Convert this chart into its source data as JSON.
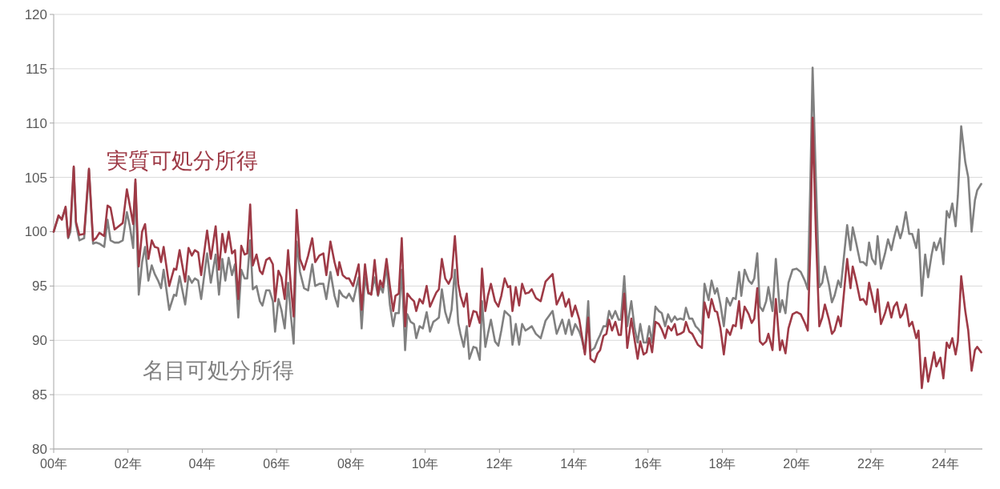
{
  "chart_data": {
    "type": "line",
    "x": [
      0,
      0.13,
      0.22,
      0.32,
      0.39,
      0.45,
      0.54,
      0.6,
      0.69,
      0.82,
      0.95,
      1.06,
      1.14,
      1.23,
      1.36,
      1.45,
      1.53,
      1.64,
      1.75,
      1.86,
      1.97,
      2.05,
      2.14,
      2.2,
      2.29,
      2.38,
      2.46,
      2.55,
      2.64,
      2.72,
      2.81,
      2.89,
      2.96,
      3.11,
      3.24,
      3.3,
      3.39,
      3.54,
      3.63,
      3.72,
      3.8,
      3.89,
      3.97,
      4.13,
      4.23,
      4.36,
      4.45,
      4.54,
      4.62,
      4.71,
      4.8,
      4.88,
      4.97,
      5.05,
      5.14,
      5.21,
      5.29,
      5.36,
      5.46,
      5.55,
      5.62,
      5.72,
      5.81,
      5.9,
      5.96,
      6.05,
      6.13,
      6.22,
      6.31,
      6.39,
      6.46,
      6.54,
      6.63,
      6.74,
      6.85,
      6.96,
      7.04,
      7.15,
      7.26,
      7.34,
      7.45,
      7.56,
      7.65,
      7.69,
      7.78,
      7.88,
      7.95,
      8.06,
      8.21,
      8.29,
      8.38,
      8.47,
      8.55,
      8.64,
      8.73,
      8.79,
      8.86,
      8.96,
      9.05,
      9.14,
      9.2,
      9.29,
      9.37,
      9.46,
      9.52,
      9.61,
      9.7,
      9.76,
      9.85,
      9.94,
      10.04,
      10.13,
      10.22,
      10.3,
      10.37,
      10.45,
      10.54,
      10.63,
      10.71,
      10.8,
      10.89,
      10.95,
      11.04,
      11.12,
      11.19,
      11.3,
      11.38,
      11.47,
      11.53,
      11.62,
      11.69,
      11.77,
      11.88,
      11.97,
      12.05,
      12.14,
      12.23,
      12.29,
      12.35,
      12.44,
      12.53,
      12.61,
      12.7,
      12.79,
      12.87,
      12.98,
      13.11,
      13.24,
      13.43,
      13.54,
      13.69,
      13.78,
      13.87,
      13.95,
      14.04,
      14.15,
      14.21,
      14.3,
      14.39,
      14.45,
      14.56,
      14.64,
      14.71,
      14.8,
      14.88,
      14.95,
      15.03,
      15.12,
      15.21,
      15.27,
      15.36,
      15.44,
      15.55,
      15.64,
      15.72,
      15.79,
      15.88,
      15.96,
      16.03,
      16.11,
      16.2,
      16.29,
      16.37,
      16.46,
      16.54,
      16.63,
      16.72,
      16.78,
      16.87,
      16.96,
      17.02,
      17.11,
      17.19,
      17.28,
      17.34,
      17.45,
      17.52,
      17.63,
      17.71,
      17.8,
      17.86,
      17.95,
      18.04,
      18.12,
      18.21,
      18.29,
      18.36,
      18.45,
      18.51,
      18.6,
      18.71,
      18.79,
      18.86,
      18.94,
      19.01,
      19.09,
      19.18,
      19.24,
      19.35,
      19.44,
      19.55,
      19.61,
      19.7,
      19.78,
      19.89,
      20,
      20.11,
      20.22,
      20.3,
      20.37,
      20.43,
      20.52,
      20.61,
      20.69,
      20.76,
      20.87,
      20.95,
      21.02,
      21.12,
      21.19,
      21.36,
      21.45,
      21.51,
      21.6,
      21.71,
      21.79,
      21.88,
      21.95,
      22.03,
      22.12,
      22.18,
      22.27,
      22.38,
      22.46,
      22.55,
      22.62,
      22.7,
      22.79,
      22.85,
      22.94,
      23.03,
      23.11,
      23.22,
      23.28,
      23.37,
      23.46,
      23.54,
      23.63,
      23.7,
      23.76,
      23.87,
      23.95,
      24.04,
      24.11,
      24.19,
      24.28,
      24.34,
      24.43,
      24.54,
      24.62,
      24.71,
      24.8,
      24.86,
      24.97
    ],
    "series": [
      {
        "name": "名目可処分所得",
        "color": "#808080",
        "values": [
          100,
          101.4,
          101.2,
          102.2,
          99.4,
          100,
          105.9,
          100.7,
          99.2,
          99.4,
          105.7,
          98.9,
          99,
          98.9,
          98.6,
          101.1,
          99.2,
          99,
          99,
          99.2,
          101.8,
          100.5,
          98.5,
          104.5,
          94.2,
          97.2,
          98.6,
          95.5,
          96.9,
          96.1,
          95.5,
          94.8,
          96.5,
          92.8,
          94.2,
          94.1,
          95.9,
          93.3,
          95.9,
          95.3,
          95.7,
          95.5,
          93.8,
          98,
          95.3,
          97.9,
          94.2,
          97.5,
          95.5,
          97.6,
          96,
          97,
          92.1,
          96.5,
          95.7,
          95.7,
          99.2,
          94.7,
          95,
          93.6,
          93.2,
          94.6,
          94.6,
          93.6,
          90.8,
          93.8,
          92.8,
          91.1,
          95.3,
          92.1,
          89.7,
          99.1,
          96.3,
          94.8,
          94.6,
          97,
          95,
          95.2,
          95.2,
          93.8,
          96.3,
          94.1,
          93.1,
          94.6,
          94.1,
          93.9,
          94.3,
          93.6,
          95.8,
          91.1,
          95.8,
          94.3,
          94.3,
          95.8,
          94.1,
          95,
          94.4,
          96.9,
          93.3,
          91.3,
          92.5,
          92.5,
          96.5,
          89.1,
          92.4,
          91.7,
          91.5,
          90.2,
          91.3,
          91.1,
          92.6,
          90.8,
          91.7,
          91.9,
          92.1,
          94.7,
          92.6,
          91.6,
          92.8,
          96.5,
          91.6,
          90.6,
          89.4,
          91.3,
          88.3,
          89.4,
          89.3,
          88.2,
          93.6,
          89.4,
          90.6,
          91.9,
          89.9,
          89.5,
          90.9,
          92.7,
          92.4,
          92.2,
          89.6,
          91.5,
          89.6,
          91.5,
          90.9,
          91.1,
          91.3,
          90.6,
          90.2,
          91.8,
          92.7,
          90.6,
          91.9,
          90.6,
          91.9,
          90.5,
          91.5,
          90.8,
          90.2,
          88.9,
          93.6,
          89,
          89.3,
          90,
          90.5,
          91.3,
          91.3,
          92.7,
          92,
          92.7,
          91.9,
          91.9,
          95.9,
          91.3,
          93.6,
          91.1,
          89.8,
          91.5,
          89.8,
          89.8,
          91.3,
          89.8,
          93.1,
          92.7,
          92.5,
          91.3,
          92.4,
          91.7,
          92.2,
          91.9,
          92,
          91.9,
          93,
          92,
          92,
          91.3,
          91.1,
          90.6,
          95.2,
          93.7,
          95.5,
          94.3,
          94.8,
          93.3,
          91.3,
          93.9,
          93.2,
          93.9,
          93.8,
          96.3,
          94.1,
          96.5,
          95.5,
          95.2,
          95.7,
          98,
          93.1,
          92.7,
          93.6,
          94.9,
          92.7,
          97.5,
          92.6,
          93.7,
          92.5,
          95.3,
          96.5,
          96.6,
          96.3,
          95.5,
          94.7,
          104.6,
          115.1,
          104.6,
          94.9,
          95.3,
          96.8,
          95.1,
          93.5,
          94.1,
          95.5,
          94.9,
          100.6,
          98.3,
          100.4,
          99,
          97.2,
          97.2,
          96.9,
          99,
          97.5,
          97,
          99.6,
          96.6,
          98,
          99.3,
          98.3,
          99.4,
          100.5,
          99.4,
          100.1,
          101.8,
          99.8,
          99.8,
          98.5,
          100.2,
          94.1,
          97.9,
          95.8,
          97.8,
          99,
          98.3,
          99.4,
          97,
          101.9,
          101.3,
          102.6,
          100.5,
          103.3,
          109.7,
          106.4,
          105,
          100,
          102.9,
          103.8,
          104.4
        ]
      },
      {
        "name": "実質可処分所得",
        "color": "#9e3a46",
        "values": [
          100,
          101.5,
          101.1,
          102.3,
          99.5,
          100.5,
          106,
          100.9,
          99.7,
          99.8,
          105.8,
          99.2,
          99.4,
          99.9,
          99.6,
          102.4,
          102.2,
          100.2,
          100.5,
          100.8,
          103.9,
          102.4,
          100.7,
          104.8,
          96.8,
          100,
          100.7,
          97.5,
          99.2,
          98.6,
          98.5,
          97.2,
          98.6,
          95,
          96.6,
          96.5,
          98.3,
          95.4,
          98.5,
          97.8,
          98.3,
          98.1,
          96,
          100.1,
          97.5,
          100.5,
          96.5,
          99.8,
          98.1,
          100,
          98,
          98.3,
          93.8,
          98.7,
          97.9,
          98,
          102.5,
          96.9,
          97.9,
          96.4,
          96.1,
          97.4,
          97.6,
          97,
          93.6,
          96.4,
          95.8,
          93.8,
          98.3,
          94.8,
          92.2,
          102,
          97.5,
          96.5,
          97.8,
          99.4,
          97.2,
          97.8,
          98,
          96,
          99.1,
          97.2,
          96,
          97.2,
          96,
          95.7,
          95.7,
          95,
          97,
          92.8,
          97,
          94.4,
          94.2,
          97.4,
          94.2,
          95.5,
          94.9,
          97.5,
          95,
          92.7,
          94.1,
          94.3,
          99.4,
          91.3,
          94.3,
          93.9,
          93.6,
          92.7,
          93.8,
          93.4,
          95,
          93.1,
          93.8,
          94.4,
          94.7,
          97.5,
          95.7,
          95.2,
          95.8,
          99.6,
          95.2,
          94.1,
          93.1,
          94.3,
          91.3,
          92.7,
          92.6,
          91.6,
          96.6,
          92.7,
          94.1,
          95.2,
          93.6,
          93.1,
          94.1,
          95.7,
          94.9,
          95,
          92.7,
          94.9,
          93.2,
          95.2,
          94.3,
          94.4,
          94.7,
          93.9,
          93.6,
          95.4,
          96.1,
          93.3,
          94.4,
          93.1,
          93.8,
          92.2,
          93.2,
          91.9,
          90.6,
          88.7,
          92.1,
          88.3,
          88,
          88.8,
          89.1,
          90.4,
          90.6,
          91.9,
          90.9,
          91.7,
          90.5,
          90.5,
          94.3,
          89.3,
          92,
          90,
          88.3,
          89.9,
          88.7,
          88.9,
          90.2,
          88.9,
          91.7,
          91.5,
          91,
          90.2,
          91.3,
          90.9,
          91.5,
          90.5,
          90.6,
          90.8,
          91.7,
          90.8,
          90.6,
          90,
          89.6,
          89.3,
          93.5,
          92.1,
          93.8,
          92.7,
          92.6,
          91.1,
          88.7,
          91,
          90.5,
          91.4,
          91.3,
          93.6,
          91.1,
          93.1,
          92.4,
          91.6,
          92,
          94.8,
          89.9,
          89.6,
          89.9,
          90.6,
          89.1,
          93.8,
          89.1,
          90,
          88.8,
          91.1,
          92.4,
          92.6,
          92.4,
          91.6,
          90.9,
          98.7,
          110.5,
          99.7,
          91.3,
          92.1,
          93.3,
          91.9,
          90.6,
          90.9,
          92.2,
          91.3,
          97.5,
          94.8,
          96.8,
          95.5,
          93.7,
          93.8,
          93.3,
          95.3,
          94.1,
          92.6,
          94.7,
          91.5,
          92.5,
          93.5,
          92.1,
          93.1,
          93.5,
          92.1,
          92.4,
          93.3,
          91.3,
          91.7,
          90.2,
          90.9,
          85.6,
          88.4,
          86.2,
          87.7,
          88.9,
          87.6,
          88.4,
          86.5,
          89.8,
          89.3,
          90.2,
          88.7,
          89.9,
          95.9,
          92.7,
          90.9,
          87.2,
          89.1,
          89.4,
          88.9
        ]
      }
    ],
    "xlim": [
      0,
      25
    ],
    "xticks": [
      {
        "value": 0,
        "label": "00年"
      },
      {
        "value": 2,
        "label": "02年"
      },
      {
        "value": 4,
        "label": "04年"
      },
      {
        "value": 6,
        "label": "06年"
      },
      {
        "value": 8,
        "label": "08年"
      },
      {
        "value": 10,
        "label": "10年"
      },
      {
        "value": 12,
        "label": "12年"
      },
      {
        "value": 14,
        "label": "14年"
      },
      {
        "value": 16,
        "label": "16年"
      },
      {
        "value": 18,
        "label": "18年"
      },
      {
        "value": 20,
        "label": "20年"
      },
      {
        "value": 22,
        "label": "22年"
      },
      {
        "value": 24,
        "label": "24年"
      }
    ],
    "ylim": [
      80,
      120
    ],
    "yticks": [
      80,
      85,
      90,
      95,
      100,
      105,
      110,
      115,
      120
    ],
    "grid": "y",
    "legend": false,
    "marker": "none",
    "line_style": "solid"
  }
}
